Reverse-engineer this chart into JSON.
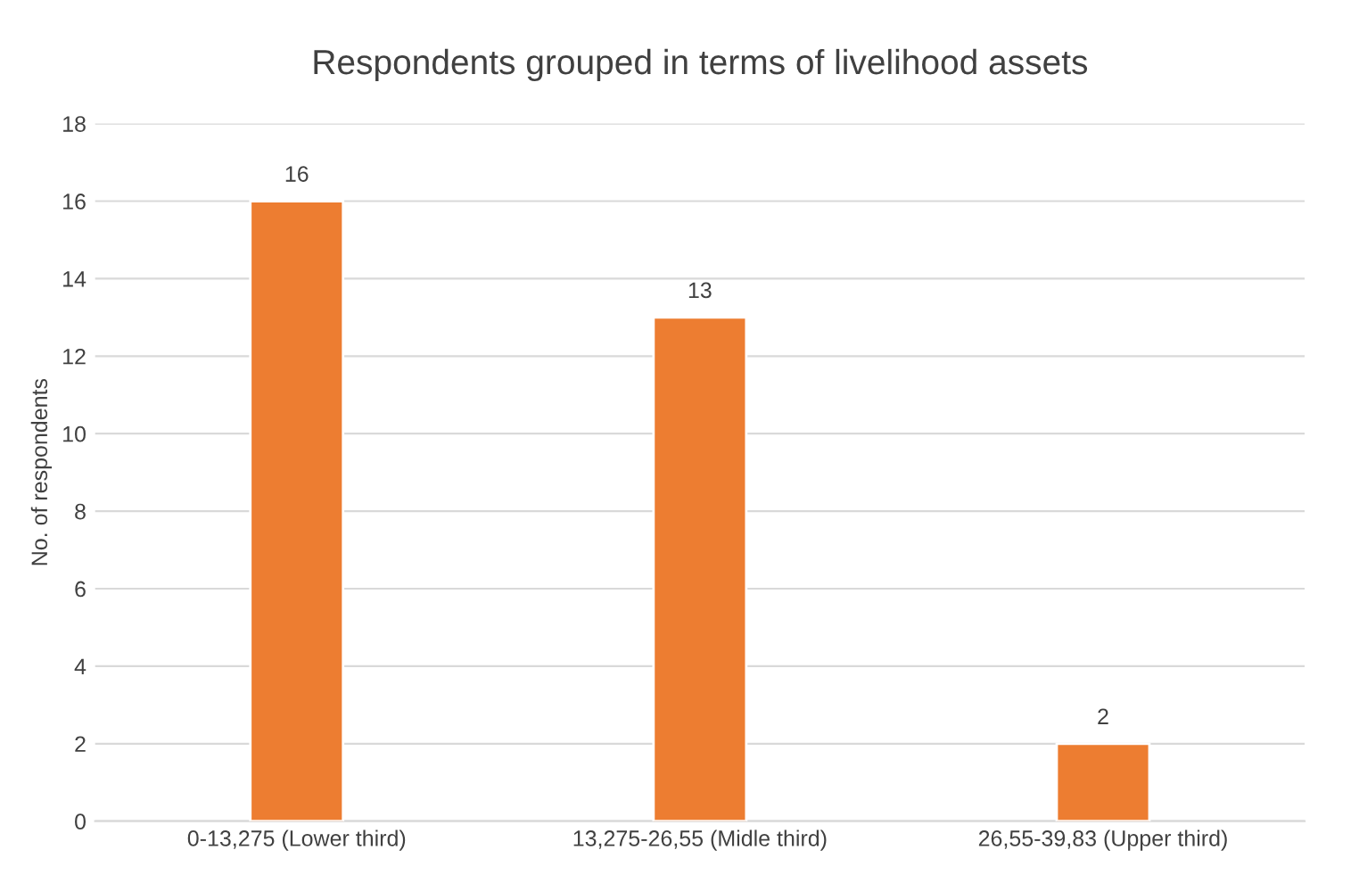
{
  "chart_data": {
    "type": "bar",
    "title": "Respondents grouped in terms of livelihood assets",
    "ylabel": "No. of respondents",
    "categories": [
      "0-13,275 (Lower third)",
      "13,275-26,55 (Midle third)",
      "26,55-39,83 (Upper third)"
    ],
    "values": [
      16,
      13,
      2
    ],
    "color": "#ed7d31",
    "ylim": [
      0,
      18
    ],
    "yticks": [
      0,
      2,
      4,
      6,
      8,
      10,
      12,
      14,
      16,
      18
    ],
    "grid": "y",
    "data_labels": true
  }
}
